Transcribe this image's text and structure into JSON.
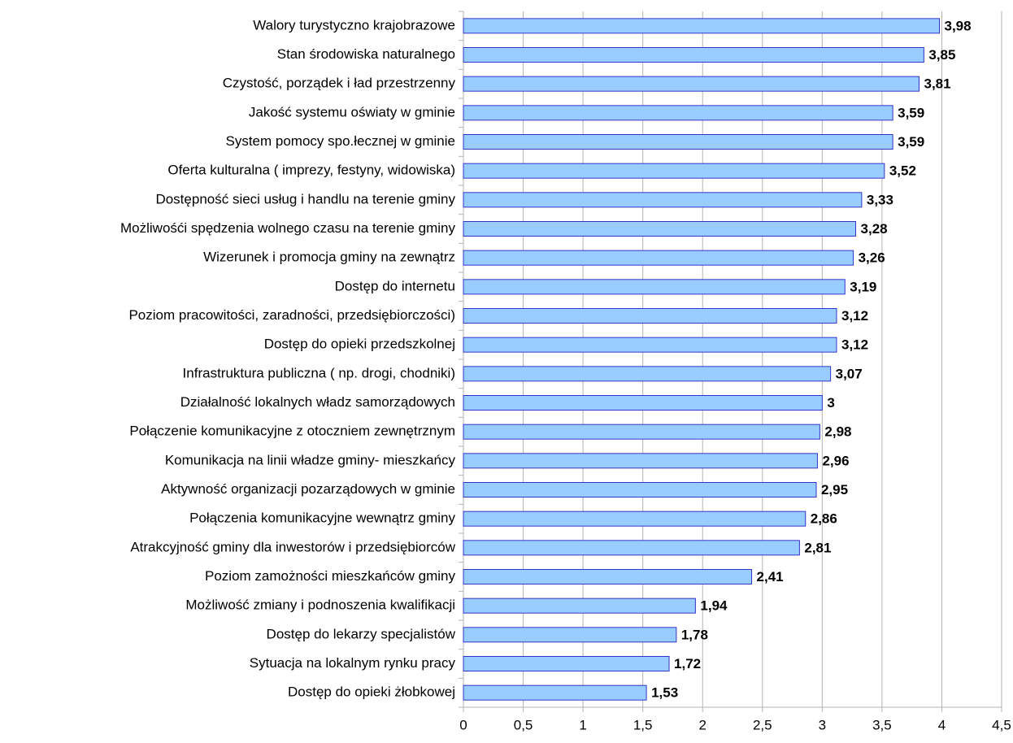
{
  "chart_data": {
    "type": "hbar",
    "categories": [
      "Walory turystyczno krajobrazowe",
      "Stan środowiska naturalnego",
      "Czystość, porządek i ład przestrzenny",
      "Jakość systemu oświaty w gminie",
      "System pomocy spo.łecznej w gminie",
      "Oferta kulturalna ( imprezy, festyny, widowiska)",
      "Dostępność sieci usług i handlu na terenie gminy",
      "Możliwośći spędzenia wolnego czasu na terenie gminy",
      "Wizerunek i promocja gminy na zewnątrz",
      "Dostęp do internetu",
      "Poziom pracowitości, zaradności, przedsiębiorczości)",
      "Dostęp do opieki przedszkolnej",
      "Infrastruktura publiczna ( np. drogi, chodniki)",
      "Działalność lokalnych władz samorządowych",
      "Połączenie komunikacyjne z otoczniem zewnętrznym",
      "Komunikacja na linii władze gminy- mieszkańcy",
      "Aktywność organizacji pozarządowych w gminie",
      "Połączenia komunikacyjne wewnątrz gminy",
      "Atrakcyjność gminy dla inwestorów i przedsiębiorców",
      "Poziom zamożności mieszkańców gminy",
      "Możliwość zmiany i podnoszenia kwalifikacji",
      "Dostęp do lekarzy specjalistów",
      "Sytuacja na lokalnym rynku pracy",
      "Dostęp do opieki żłobkowej"
    ],
    "values": [
      3.98,
      3.85,
      3.81,
      3.59,
      3.59,
      3.52,
      3.33,
      3.28,
      3.26,
      3.19,
      3.12,
      3.12,
      3.07,
      3,
      2.98,
      2.96,
      2.95,
      2.86,
      2.81,
      2.41,
      1.94,
      1.78,
      1.72,
      1.53
    ],
    "value_labels": [
      "3,98",
      "3,85",
      "3,81",
      "3,59",
      "3,59",
      "3,52",
      "3,33",
      "3,28",
      "3,26",
      "3,19",
      "3,12",
      "3,12",
      "3,07",
      "3",
      "2,98",
      "2,96",
      "2,95",
      "2,86",
      "2,81",
      "2,41",
      "1,94",
      "1,78",
      "1,72",
      "1,53"
    ],
    "color": "#99ccff",
    "edge_color": "#3333cc",
    "xlim": [
      0,
      4.5
    ],
    "xticks": [
      0,
      {
        "value": 0.5,
        "label": "0,5"
      },
      1,
      {
        "value": 1.5,
        "label": "1,5"
      },
      2,
      {
        "value": 2.5,
        "label": "2,5"
      },
      3,
      {
        "value": 3.5,
        "label": "3,5"
      },
      4,
      {
        "value": 4.5,
        "label": "4,5"
      }
    ],
    "grid": true
  }
}
